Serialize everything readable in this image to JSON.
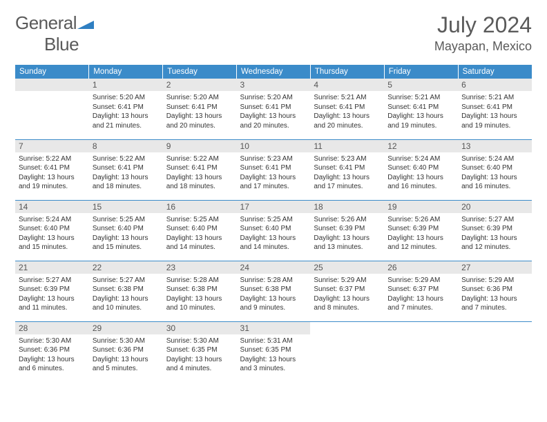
{
  "brand": {
    "name1": "General",
    "name2": "Blue",
    "accent": "#2f7fc2"
  },
  "title": "July 2024",
  "location": "Mayapan, Mexico",
  "header_bg": "#3b8bc9",
  "daynum_bg": "#e8e8e8",
  "weekdays": [
    "Sunday",
    "Monday",
    "Tuesday",
    "Wednesday",
    "Thursday",
    "Friday",
    "Saturday"
  ],
  "weeks": [
    [
      null,
      {
        "n": "1",
        "sr": "5:20 AM",
        "ss": "6:41 PM",
        "dl": "13 hours and 21 minutes."
      },
      {
        "n": "2",
        "sr": "5:20 AM",
        "ss": "6:41 PM",
        "dl": "13 hours and 20 minutes."
      },
      {
        "n": "3",
        "sr": "5:20 AM",
        "ss": "6:41 PM",
        "dl": "13 hours and 20 minutes."
      },
      {
        "n": "4",
        "sr": "5:21 AM",
        "ss": "6:41 PM",
        "dl": "13 hours and 20 minutes."
      },
      {
        "n": "5",
        "sr": "5:21 AM",
        "ss": "6:41 PM",
        "dl": "13 hours and 19 minutes."
      },
      {
        "n": "6",
        "sr": "5:21 AM",
        "ss": "6:41 PM",
        "dl": "13 hours and 19 minutes."
      }
    ],
    [
      {
        "n": "7",
        "sr": "5:22 AM",
        "ss": "6:41 PM",
        "dl": "13 hours and 19 minutes."
      },
      {
        "n": "8",
        "sr": "5:22 AM",
        "ss": "6:41 PM",
        "dl": "13 hours and 18 minutes."
      },
      {
        "n": "9",
        "sr": "5:22 AM",
        "ss": "6:41 PM",
        "dl": "13 hours and 18 minutes."
      },
      {
        "n": "10",
        "sr": "5:23 AM",
        "ss": "6:41 PM",
        "dl": "13 hours and 17 minutes."
      },
      {
        "n": "11",
        "sr": "5:23 AM",
        "ss": "6:41 PM",
        "dl": "13 hours and 17 minutes."
      },
      {
        "n": "12",
        "sr": "5:24 AM",
        "ss": "6:40 PM",
        "dl": "13 hours and 16 minutes."
      },
      {
        "n": "13",
        "sr": "5:24 AM",
        "ss": "6:40 PM",
        "dl": "13 hours and 16 minutes."
      }
    ],
    [
      {
        "n": "14",
        "sr": "5:24 AM",
        "ss": "6:40 PM",
        "dl": "13 hours and 15 minutes."
      },
      {
        "n": "15",
        "sr": "5:25 AM",
        "ss": "6:40 PM",
        "dl": "13 hours and 15 minutes."
      },
      {
        "n": "16",
        "sr": "5:25 AM",
        "ss": "6:40 PM",
        "dl": "13 hours and 14 minutes."
      },
      {
        "n": "17",
        "sr": "5:25 AM",
        "ss": "6:40 PM",
        "dl": "13 hours and 14 minutes."
      },
      {
        "n": "18",
        "sr": "5:26 AM",
        "ss": "6:39 PM",
        "dl": "13 hours and 13 minutes."
      },
      {
        "n": "19",
        "sr": "5:26 AM",
        "ss": "6:39 PM",
        "dl": "13 hours and 12 minutes."
      },
      {
        "n": "20",
        "sr": "5:27 AM",
        "ss": "6:39 PM",
        "dl": "13 hours and 12 minutes."
      }
    ],
    [
      {
        "n": "21",
        "sr": "5:27 AM",
        "ss": "6:39 PM",
        "dl": "13 hours and 11 minutes."
      },
      {
        "n": "22",
        "sr": "5:27 AM",
        "ss": "6:38 PM",
        "dl": "13 hours and 10 minutes."
      },
      {
        "n": "23",
        "sr": "5:28 AM",
        "ss": "6:38 PM",
        "dl": "13 hours and 10 minutes."
      },
      {
        "n": "24",
        "sr": "5:28 AM",
        "ss": "6:38 PM",
        "dl": "13 hours and 9 minutes."
      },
      {
        "n": "25",
        "sr": "5:29 AM",
        "ss": "6:37 PM",
        "dl": "13 hours and 8 minutes."
      },
      {
        "n": "26",
        "sr": "5:29 AM",
        "ss": "6:37 PM",
        "dl": "13 hours and 7 minutes."
      },
      {
        "n": "27",
        "sr": "5:29 AM",
        "ss": "6:36 PM",
        "dl": "13 hours and 7 minutes."
      }
    ],
    [
      {
        "n": "28",
        "sr": "5:30 AM",
        "ss": "6:36 PM",
        "dl": "13 hours and 6 minutes."
      },
      {
        "n": "29",
        "sr": "5:30 AM",
        "ss": "6:36 PM",
        "dl": "13 hours and 5 minutes."
      },
      {
        "n": "30",
        "sr": "5:30 AM",
        "ss": "6:35 PM",
        "dl": "13 hours and 4 minutes."
      },
      {
        "n": "31",
        "sr": "5:31 AM",
        "ss": "6:35 PM",
        "dl": "13 hours and 3 minutes."
      },
      null,
      null,
      null
    ]
  ],
  "labels": {
    "sunrise": "Sunrise:",
    "sunset": "Sunset:",
    "daylight": "Daylight:"
  }
}
